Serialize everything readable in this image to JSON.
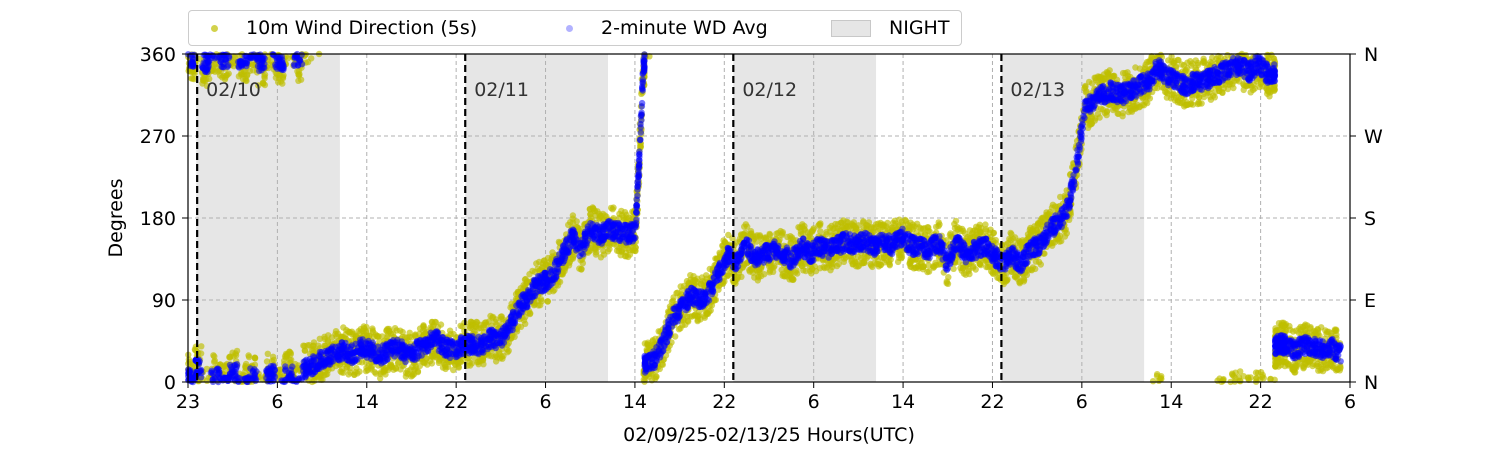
{
  "chart_data": {
    "type": "scatter",
    "xlabel": "02/09/25-02/13/25  Hours(UTC)",
    "ylabel": "Degrees",
    "x_ticks": [
      "23",
      "6",
      "14",
      "22",
      "6",
      "14",
      "22",
      "6",
      "14",
      "22",
      "6",
      "14",
      "22",
      "6"
    ],
    "y_ticks": [
      0,
      90,
      180,
      270,
      360
    ],
    "y_ticks_right": [
      "N",
      "E",
      "S",
      "W",
      "N"
    ],
    "ylim": [
      0,
      360
    ],
    "xlim_hours": [
      0,
      127
    ],
    "grid": true,
    "legend_placement": "top",
    "legend": [
      "10m Wind Direction (5s)",
      "2-minute WD Avg",
      "NIGHT"
    ],
    "day_labels": [
      {
        "text": "02/10",
        "hour": 1
      },
      {
        "text": "02/11",
        "hour": 30.3
      },
      {
        "text": "02/12",
        "hour": 59.6
      },
      {
        "text": "02/13",
        "hour": 88.9
      }
    ],
    "night_spans": [
      [
        0.9,
        16.6
      ],
      [
        30.3,
        45.9
      ],
      [
        59.6,
        75.2
      ],
      [
        88.9,
        104.5
      ]
    ],
    "series": [
      {
        "name": "10m Wind Direction (5s)",
        "color": "#bfbf00",
        "spread": 25,
        "values": [
          [
            0,
            5
          ],
          [
            0.5,
            355
          ],
          [
            1,
            15
          ],
          [
            2,
            350
          ],
          [
            3,
            5
          ],
          [
            4,
            355
          ],
          [
            5,
            10
          ],
          [
            6,
            355
          ],
          [
            7,
            5
          ],
          [
            8,
            350
          ],
          [
            9,
            8
          ],
          [
            10,
            352
          ],
          [
            11,
            10
          ],
          [
            12,
            355
          ],
          [
            13,
            15
          ],
          [
            14,
            20
          ],
          [
            15,
            28
          ],
          [
            16,
            30
          ],
          [
            17,
            35
          ],
          [
            18,
            30
          ],
          [
            19,
            38
          ],
          [
            20,
            35
          ],
          [
            21,
            28
          ],
          [
            22,
            35
          ],
          [
            23,
            40
          ],
          [
            24,
            28
          ],
          [
            25,
            35
          ],
          [
            26,
            40
          ],
          [
            27,
            48
          ],
          [
            28,
            38
          ],
          [
            29,
            35
          ],
          [
            30,
            40
          ],
          [
            31,
            42
          ],
          [
            32,
            40
          ],
          [
            33,
            48
          ],
          [
            34,
            45
          ],
          [
            35,
            55
          ],
          [
            36,
            80
          ],
          [
            37,
            90
          ],
          [
            38,
            105
          ],
          [
            39,
            110
          ],
          [
            40,
            120
          ],
          [
            41,
            140
          ],
          [
            42,
            160
          ],
          [
            43,
            145
          ],
          [
            44,
            170
          ],
          [
            45,
            160
          ],
          [
            46,
            168
          ],
          [
            47,
            165
          ],
          [
            48,
            162
          ],
          [
            48.9,
            165
          ],
          [
            49.3,
            240
          ],
          [
            49.8,
            350
          ],
          [
            50,
            20
          ],
          [
            51,
            25
          ],
          [
            52,
            45
          ],
          [
            53,
            70
          ],
          [
            54,
            82
          ],
          [
            55,
            95
          ],
          [
            56,
            90
          ],
          [
            57,
            100
          ],
          [
            58,
            120
          ],
          [
            59,
            140
          ],
          [
            60,
            130
          ],
          [
            61,
            150
          ],
          [
            62,
            135
          ],
          [
            63,
            140
          ],
          [
            64,
            145
          ],
          [
            65,
            140
          ],
          [
            66,
            135
          ],
          [
            67,
            150
          ],
          [
            68,
            140
          ],
          [
            69,
            150
          ],
          [
            70,
            145
          ],
          [
            71,
            150
          ],
          [
            72,
            155
          ],
          [
            73,
            150
          ],
          [
            74,
            155
          ],
          [
            75,
            148
          ],
          [
            76,
            155
          ],
          [
            77,
            150
          ],
          [
            78,
            160
          ],
          [
            79,
            150
          ],
          [
            80,
            148
          ],
          [
            81,
            145
          ],
          [
            82,
            155
          ],
          [
            83,
            130
          ],
          [
            84,
            155
          ],
          [
            85,
            140
          ],
          [
            86,
            145
          ],
          [
            87,
            150
          ],
          [
            88,
            140
          ],
          [
            89,
            130
          ],
          [
            90,
            140
          ],
          [
            91,
            130
          ],
          [
            92,
            145
          ],
          [
            93,
            150
          ],
          [
            94,
            165
          ],
          [
            95,
            175
          ],
          [
            96,
            185
          ],
          [
            97,
            230
          ],
          [
            98,
            300
          ],
          [
            99,
            310
          ],
          [
            100,
            315
          ],
          [
            101,
            320
          ],
          [
            102,
            315
          ],
          [
            103,
            320
          ],
          [
            104,
            325
          ],
          [
            105,
            330
          ],
          [
            106,
            345
          ],
          [
            107,
            335
          ],
          [
            108,
            330
          ],
          [
            109,
            325
          ],
          [
            110,
            330
          ],
          [
            111,
            330
          ],
          [
            112,
            335
          ],
          [
            113,
            340
          ],
          [
            114,
            345
          ],
          [
            115,
            348
          ],
          [
            116,
            340
          ],
          [
            117,
            350
          ],
          [
            118,
            338
          ],
          [
            118.7,
            340
          ],
          [
            118.9,
            40
          ],
          [
            119.5,
            42
          ],
          [
            120,
            40
          ],
          [
            121,
            35
          ],
          [
            122,
            40
          ],
          [
            123,
            38
          ],
          [
            124,
            35
          ],
          [
            125,
            38
          ],
          [
            126,
            30
          ]
        ]
      },
      {
        "name": "2-minute WD Avg",
        "color": "#0000ff",
        "spread": 10,
        "values": [
          [
            0,
            5
          ],
          [
            0.5,
            355
          ],
          [
            1,
            15
          ],
          [
            2,
            350
          ],
          [
            3,
            5
          ],
          [
            4,
            355
          ],
          [
            5,
            10
          ],
          [
            6,
            355
          ],
          [
            7,
            5
          ],
          [
            8,
            350
          ],
          [
            9,
            8
          ],
          [
            10,
            352
          ],
          [
            11,
            10
          ],
          [
            12,
            355
          ],
          [
            13,
            15
          ],
          [
            14,
            20
          ],
          [
            15,
            28
          ],
          [
            16,
            30
          ],
          [
            17,
            35
          ],
          [
            18,
            30
          ],
          [
            19,
            38
          ],
          [
            20,
            35
          ],
          [
            21,
            28
          ],
          [
            22,
            35
          ],
          [
            23,
            40
          ],
          [
            24,
            28
          ],
          [
            25,
            35
          ],
          [
            26,
            40
          ],
          [
            27,
            48
          ],
          [
            28,
            38
          ],
          [
            29,
            35
          ],
          [
            30,
            40
          ],
          [
            31,
            42
          ],
          [
            32,
            40
          ],
          [
            33,
            48
          ],
          [
            34,
            45
          ],
          [
            35,
            55
          ],
          [
            36,
            80
          ],
          [
            37,
            90
          ],
          [
            38,
            105
          ],
          [
            39,
            110
          ],
          [
            40,
            120
          ],
          [
            41,
            140
          ],
          [
            42,
            160
          ],
          [
            43,
            145
          ],
          [
            44,
            170
          ],
          [
            45,
            160
          ],
          [
            46,
            168
          ],
          [
            47,
            165
          ],
          [
            48,
            162
          ],
          [
            48.9,
            165
          ],
          [
            49.3,
            240
          ],
          [
            49.8,
            350
          ],
          [
            50,
            20
          ],
          [
            51,
            25
          ],
          [
            52,
            45
          ],
          [
            53,
            70
          ],
          [
            54,
            82
          ],
          [
            55,
            95
          ],
          [
            56,
            90
          ],
          [
            57,
            100
          ],
          [
            58,
            120
          ],
          [
            59,
            140
          ],
          [
            60,
            130
          ],
          [
            61,
            150
          ],
          [
            62,
            135
          ],
          [
            63,
            140
          ],
          [
            64,
            145
          ],
          [
            65,
            140
          ],
          [
            66,
            135
          ],
          [
            67,
            150
          ],
          [
            68,
            140
          ],
          [
            69,
            150
          ],
          [
            70,
            145
          ],
          [
            71,
            150
          ],
          [
            72,
            155
          ],
          [
            73,
            150
          ],
          [
            74,
            155
          ],
          [
            75,
            148
          ],
          [
            76,
            155
          ],
          [
            77,
            150
          ],
          [
            78,
            160
          ],
          [
            79,
            150
          ],
          [
            80,
            148
          ],
          [
            81,
            145
          ],
          [
            82,
            155
          ],
          [
            83,
            130
          ],
          [
            84,
            155
          ],
          [
            85,
            140
          ],
          [
            86,
            145
          ],
          [
            87,
            150
          ],
          [
            88,
            140
          ],
          [
            89,
            130
          ],
          [
            90,
            140
          ],
          [
            91,
            130
          ],
          [
            92,
            145
          ],
          [
            93,
            150
          ],
          [
            94,
            165
          ],
          [
            95,
            175
          ],
          [
            96,
            185
          ],
          [
            97,
            230
          ],
          [
            98,
            300
          ],
          [
            99,
            310
          ],
          [
            100,
            315
          ],
          [
            101,
            320
          ],
          [
            102,
            315
          ],
          [
            103,
            320
          ],
          [
            104,
            325
          ],
          [
            105,
            330
          ],
          [
            106,
            345
          ],
          [
            107,
            335
          ],
          [
            108,
            330
          ],
          [
            109,
            325
          ],
          [
            110,
            330
          ],
          [
            111,
            330
          ],
          [
            112,
            335
          ],
          [
            113,
            340
          ],
          [
            114,
            345
          ],
          [
            115,
            348
          ],
          [
            116,
            340
          ],
          [
            117,
            350
          ],
          [
            118,
            338
          ],
          [
            118.7,
            340
          ],
          [
            118.9,
            40
          ],
          [
            119.5,
            42
          ],
          [
            120,
            40
          ],
          [
            121,
            35
          ],
          [
            122,
            40
          ],
          [
            123,
            38
          ],
          [
            124,
            35
          ],
          [
            125,
            38
          ],
          [
            126,
            30
          ]
        ]
      }
    ]
  },
  "legend_colors": {
    "wind5s": "#bfbf00",
    "avg2min": "#0000ff",
    "night": "#e6e6e6"
  }
}
